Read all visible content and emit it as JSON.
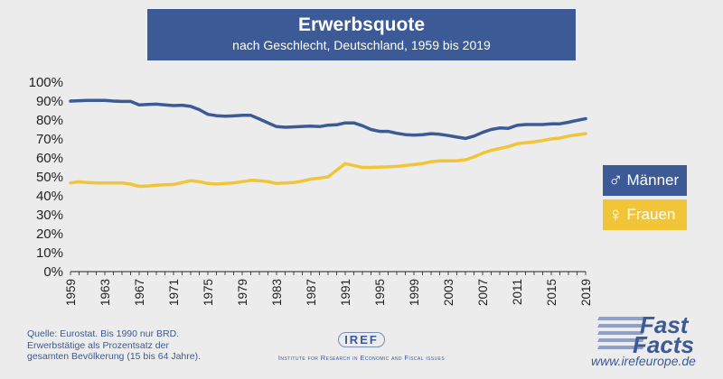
{
  "header": {
    "title": "Erwerbsquote",
    "subtitle": "nach Geschlecht, Deutschland, 1959 bis 2019"
  },
  "legend": {
    "men": {
      "symbol": "♂",
      "label": "Männer",
      "color": "#3c5a96"
    },
    "women": {
      "symbol": "♀",
      "label": "Frauen",
      "color": "#f2c538"
    }
  },
  "source": {
    "line1": "Quelle: Eurostat. Bis 1990 nur BRD.",
    "line2": "Erwerbstätige als Prozentsatz der",
    "line3": "gesamten Bevölkerung (15 bis 64 Jahre)."
  },
  "iref": {
    "logo_text": "IREF",
    "tagline": "Institute for Research in Economic and Fiscal issues"
  },
  "brand": {
    "line1": "Fast",
    "line2": "Facts",
    "url": "www.irefeurope.de"
  },
  "chart_data": {
    "type": "line",
    "title": "Erwerbsquote",
    "subtitle": "nach Geschlecht, Deutschland, 1959 bis 2019",
    "xlabel": "",
    "ylabel": "",
    "xlim": [
      1959,
      2019
    ],
    "ylim": [
      0,
      100
    ],
    "y_ticks": [
      "0%",
      "10%",
      "20%",
      "30%",
      "40%",
      "50%",
      "60%",
      "70%",
      "80%",
      "90%",
      "100%"
    ],
    "x_ticks": [
      "1959",
      "1963",
      "1967",
      "1971",
      "1975",
      "1979",
      "1983",
      "1987",
      "1991",
      "1995",
      "1999",
      "2003",
      "2007",
      "2011",
      "2015",
      "2019"
    ],
    "grid": false,
    "legend_position": "right",
    "x": [
      1959,
      1960,
      1961,
      1962,
      1963,
      1964,
      1965,
      1966,
      1967,
      1968,
      1969,
      1970,
      1971,
      1972,
      1973,
      1974,
      1975,
      1976,
      1977,
      1978,
      1979,
      1980,
      1981,
      1982,
      1983,
      1984,
      1985,
      1986,
      1987,
      1988,
      1989,
      1990,
      1991,
      1992,
      1993,
      1994,
      1995,
      1996,
      1997,
      1998,
      1999,
      2000,
      2001,
      2002,
      2003,
      2004,
      2005,
      2006,
      2007,
      2008,
      2009,
      2010,
      2011,
      2012,
      2013,
      2014,
      2015,
      2016,
      2017,
      2018,
      2019
    ],
    "series": [
      {
        "name": "Männer",
        "color": "#3c5a96",
        "values": [
          90.0,
          90.2,
          90.4,
          90.4,
          90.4,
          90.0,
          89.8,
          89.8,
          88.0,
          88.2,
          88.4,
          88.0,
          87.6,
          87.8,
          87.2,
          85.5,
          83.0,
          82.3,
          82.0,
          82.2,
          82.5,
          82.5,
          80.5,
          78.5,
          76.5,
          76.2,
          76.4,
          76.6,
          76.8,
          76.5,
          77.3,
          77.5,
          78.5,
          78.5,
          77.0,
          75.0,
          74.0,
          74.0,
          73.0,
          72.3,
          72.0,
          72.3,
          72.8,
          72.5,
          71.8,
          71.0,
          70.3,
          71.5,
          73.5,
          75.0,
          75.8,
          75.6,
          77.2,
          77.6,
          77.6,
          77.6,
          78.0,
          78.0,
          78.8,
          79.8,
          80.7
        ]
      },
      {
        "name": "Frauen",
        "color": "#f2c538",
        "values": [
          46.8,
          47.4,
          47.0,
          46.8,
          46.8,
          46.8,
          46.8,
          46.2,
          45.0,
          45.2,
          45.6,
          45.8,
          46.0,
          47.0,
          48.0,
          47.5,
          46.5,
          46.2,
          46.5,
          46.8,
          47.5,
          48.2,
          48.0,
          47.5,
          46.5,
          46.8,
          47.0,
          47.8,
          48.8,
          49.4,
          50.0,
          53.5,
          57.0,
          56.0,
          55.0,
          55.0,
          55.2,
          55.3,
          55.5,
          56.0,
          56.5,
          57.0,
          58.0,
          58.5,
          58.5,
          58.5,
          59.0,
          60.5,
          62.5,
          64.0,
          65.0,
          66.0,
          67.5,
          68.0,
          68.5,
          69.2,
          70.0,
          70.5,
          71.5,
          72.2,
          72.8
        ]
      }
    ]
  }
}
